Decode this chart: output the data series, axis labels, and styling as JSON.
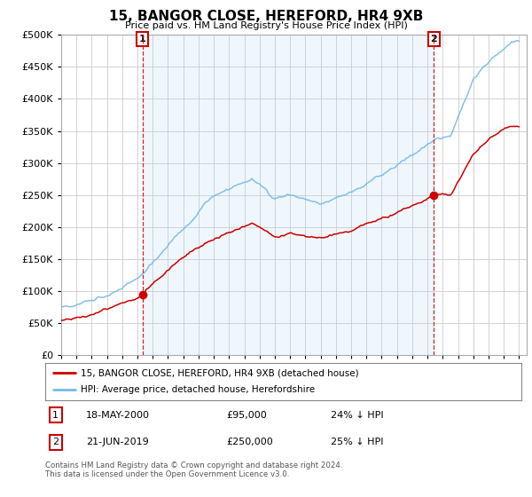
{
  "title": "15, BANGOR CLOSE, HEREFORD, HR4 9XB",
  "subtitle": "Price paid vs. HM Land Registry's House Price Index (HPI)",
  "hpi_color": "#7ab8e8",
  "price_color": "#cc0000",
  "fill_color": "#d6eaf8",
  "sale1_date_label": "18-MAY-2000",
  "sale1_price": 95000,
  "sale1_price_label": "£95,000",
  "sale1_hpi_diff": "24% ↓ HPI",
  "sale2_date_label": "21-JUN-2019",
  "sale2_price": 250000,
  "sale2_price_label": "£250,000",
  "sale2_hpi_diff": "25% ↓ HPI",
  "legend_line1": "15, BANGOR CLOSE, HEREFORD, HR4 9XB (detached house)",
  "legend_line2": "HPI: Average price, detached house, Herefordshire",
  "footer": "Contains HM Land Registry data © Crown copyright and database right 2024.\nThis data is licensed under the Open Government Licence v3.0.",
  "ylim": [
    0,
    500000
  ],
  "yticks": [
    0,
    50000,
    100000,
    150000,
    200000,
    250000,
    300000,
    350000,
    400000,
    450000,
    500000
  ],
  "background_color": "#ffffff",
  "grid_color": "#cccccc",
  "sale1_year": 2000.37,
  "sale2_year": 2019.46
}
